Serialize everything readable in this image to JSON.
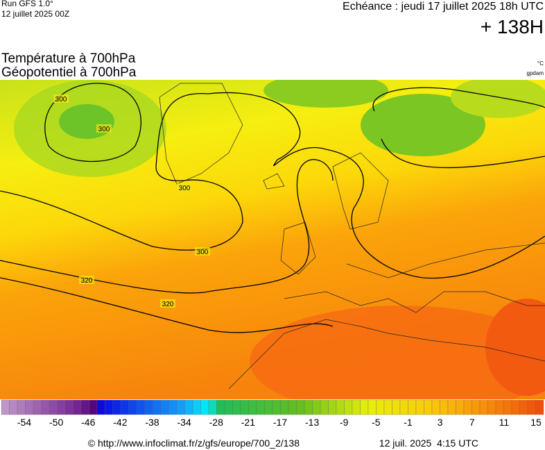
{
  "header": {
    "run": "Run GFS 1.0°",
    "date": "12 juillet 2025 00Z",
    "valid": "Echéance : jeudi 17 juillet 2025 18h UTC",
    "lead": "+ 138H"
  },
  "title": [
    "Température à 700hPa",
    "Géopotentiel à 700hPa"
  ],
  "units": [
    "°C",
    "gpdam"
  ],
  "contour_labels": [
    "300",
    "300",
    "300",
    "300",
    "320",
    "320"
  ],
  "colorbar_labels": [
    "-54",
    "-50",
    "-46",
    "-42",
    "-38",
    "-34",
    "-28",
    "-21",
    "-17",
    "-13",
    "-9",
    "-5",
    "-1",
    "3",
    "7",
    "11",
    "15"
  ],
  "footer": {
    "url": "© http://www.infoclimat.fr/z/gfs/europe/700_2/138",
    "time": "12 juil. 2025  4:15 UTC"
  }
}
